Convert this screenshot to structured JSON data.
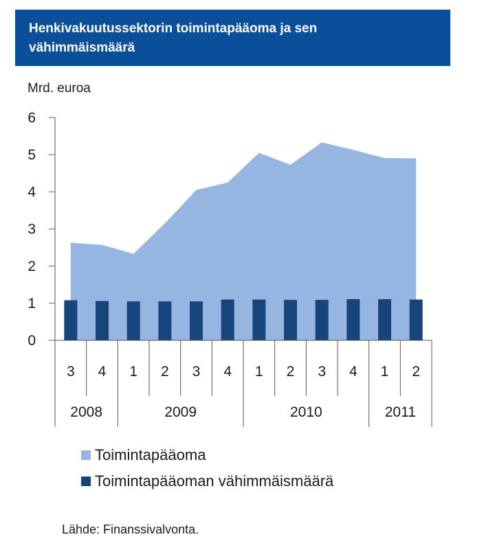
{
  "header": {
    "title": "Henkivakuutussektorin toimintapääoma ja sen\nvähimmäismäärä"
  },
  "colors": {
    "header_bg": "#0b4f9a",
    "area": "#96b5e0",
    "bar": "#17447a",
    "axis": "#555555"
  },
  "chart_data": {
    "type": "bar",
    "ylabel": "Mrd. euroa",
    "ylim": [
      0,
      6
    ],
    "yticks": [
      0,
      1,
      2,
      3,
      4,
      5,
      6
    ],
    "categories": [
      "3",
      "4",
      "1",
      "2",
      "3",
      "4",
      "1",
      "2",
      "3",
      "4",
      "1",
      "2"
    ],
    "years": [
      {
        "label": "2008",
        "quarters": 2
      },
      {
        "label": "2009",
        "quarters": 4
      },
      {
        "label": "2010",
        "quarters": 4
      },
      {
        "label": "2011",
        "quarters": 2
      }
    ],
    "series": [
      {
        "name": "Toimintapääoma",
        "type": "area",
        "values": [
          2.63,
          2.57,
          2.33,
          3.15,
          4.05,
          4.25,
          5.05,
          4.73,
          5.33,
          5.13,
          4.91,
          4.9
        ]
      },
      {
        "name": "Toimintapääoman vähimmäismäärä",
        "type": "bar",
        "values": [
          1.08,
          1.06,
          1.05,
          1.05,
          1.05,
          1.1,
          1.1,
          1.09,
          1.09,
          1.11,
          1.11,
          1.1
        ]
      }
    ]
  },
  "source": "Lähde: Finanssivalvonta."
}
